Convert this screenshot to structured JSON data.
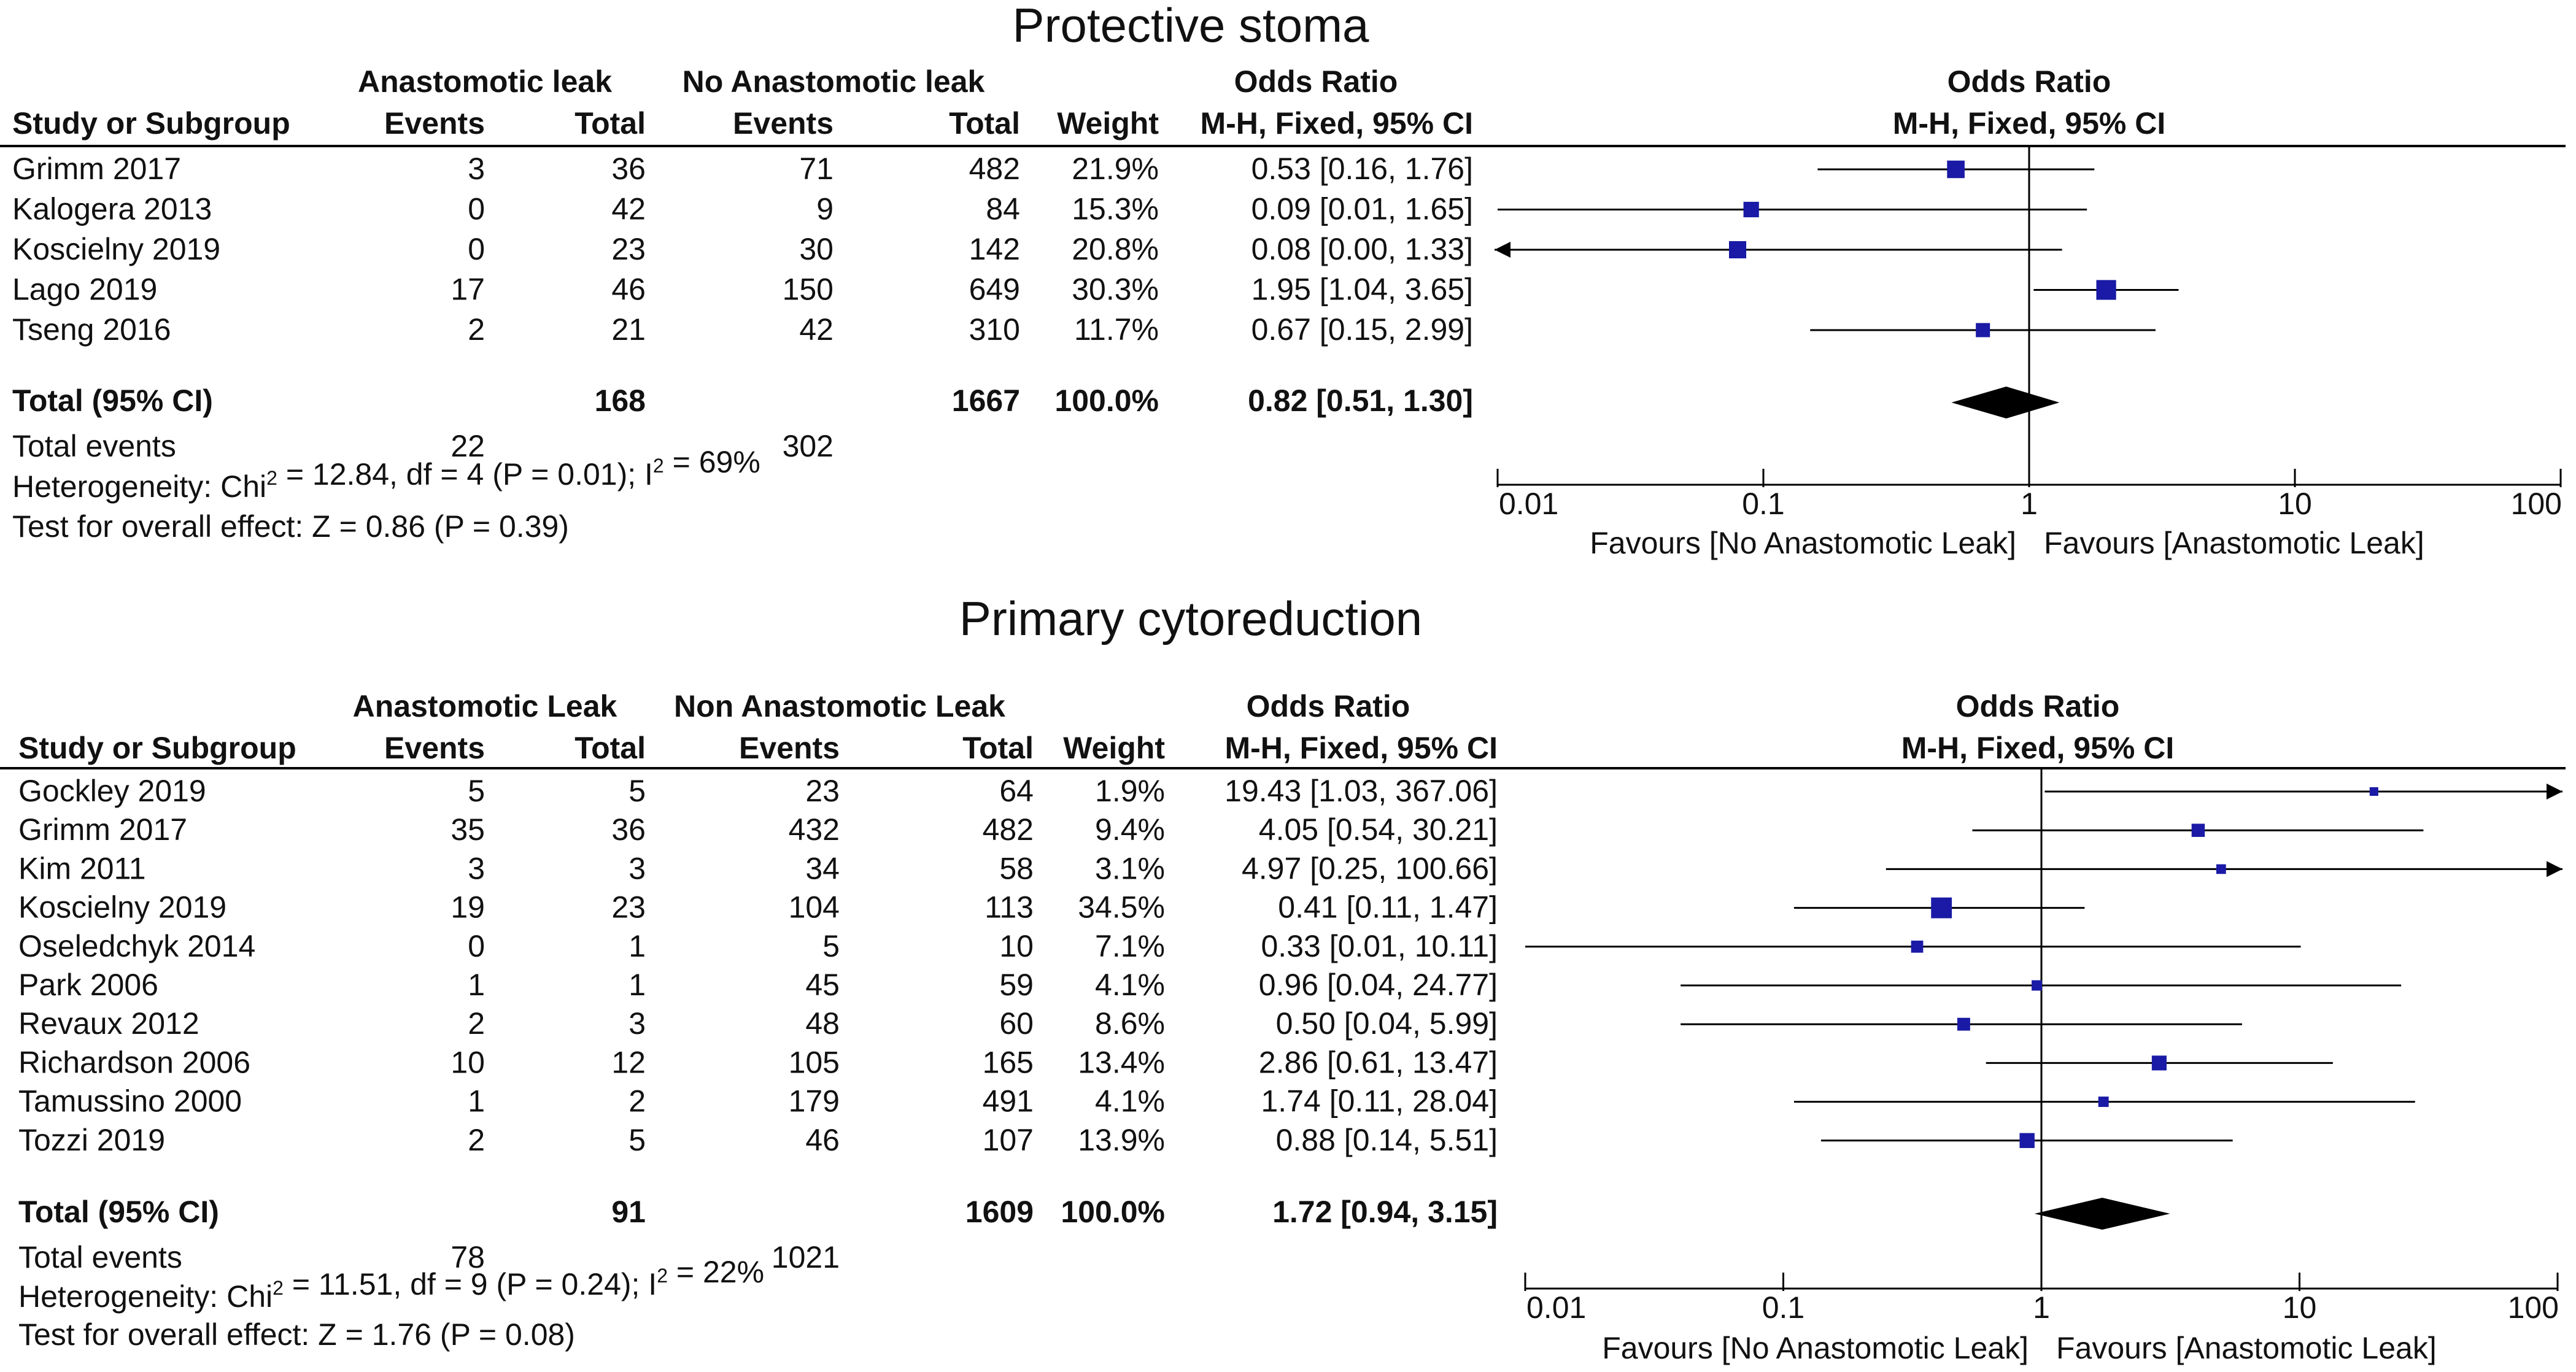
{
  "chart_data": [
    {
      "type": "table",
      "title": "Protective stoma",
      "group1_label": "Anastomotic leak",
      "group2_label": "No Anastomotic leak",
      "columns": {
        "study": "Study or Subgroup",
        "events": "Events",
        "total": "Total",
        "weight": "Weight",
        "or_header": "Odds Ratio",
        "or_method": "M-H, Fixed, 95% CI"
      },
      "plot_header": "Odds Ratio",
      "plot_method": "M-H, Fixed, 95% CI",
      "studies": [
        {
          "name": "Grimm 2017",
          "e1": "3",
          "t1": "36",
          "e2": "71",
          "t2": "482",
          "weight": "21.9%",
          "ci_text": "0.53 [0.16, 1.76]",
          "or": 0.53,
          "lo": 0.16,
          "hi": 1.76,
          "w": 21.9
        },
        {
          "name": "Kalogera 2013",
          "e1": "0",
          "t1": "42",
          "e2": "9",
          "t2": "84",
          "weight": "15.3%",
          "ci_text": "0.09 [0.01, 1.65]",
          "or": 0.09,
          "lo": 0.01,
          "hi": 1.65,
          "w": 15.3
        },
        {
          "name": "Koscielny 2019",
          "e1": "0",
          "t1": "23",
          "e2": "30",
          "t2": "142",
          "weight": "20.8%",
          "ci_text": "0.08 [0.00, 1.33]",
          "or": 0.08,
          "lo": 0.0,
          "hi": 1.33,
          "w": 20.8
        },
        {
          "name": "Lago 2019",
          "e1": "17",
          "t1": "46",
          "e2": "150",
          "t2": "649",
          "weight": "30.3%",
          "ci_text": "1.95 [1.04, 3.65]",
          "or": 1.95,
          "lo": 1.04,
          "hi": 3.65,
          "w": 30.3
        },
        {
          "name": "Tseng 2016",
          "e1": "2",
          "t1": "21",
          "e2": "42",
          "t2": "310",
          "weight": "11.7%",
          "ci_text": "0.67 [0.15, 2.99]",
          "or": 0.67,
          "lo": 0.15,
          "hi": 2.99,
          "w": 11.7
        }
      ],
      "total": {
        "label": "Total (95% CI)",
        "t1": "168",
        "t2": "1667",
        "weight": "100.0%",
        "ci_text": "0.82 [0.51, 1.30]",
        "or": 0.82,
        "lo": 0.51,
        "hi": 1.3
      },
      "total_events": {
        "label": "Total events",
        "e1": "22",
        "e2": "302"
      },
      "heterogeneity": {
        "prefix": "Heterogeneity: Chi",
        "sup1": "2",
        "middle": " = 12.84, df = 4 (P = 0.01); I",
        "sup2": "2",
        "suffix": " = 69%"
      },
      "overall_effect": "Test for overall effect: Z = 0.86 (P = 0.39)",
      "axis": {
        "ticks": [
          0.01,
          0.1,
          1,
          10,
          100
        ],
        "tick_labels": [
          "0.01",
          "0.1",
          "1",
          "10",
          "100"
        ],
        "range": [
          0.01,
          100
        ],
        "scale": "log"
      },
      "favours_left": "Favours [No Anastomotic Leak]",
      "favours_right": "Favours [Anastomotic Leak]"
    },
    {
      "type": "table",
      "title": "Primary cytoreduction",
      "group1_label": "Anastomotic Leak",
      "group2_label": "Non Anastomotic Leak",
      "columns": {
        "study": "Study or Subgroup",
        "events": "Events",
        "total": "Total",
        "weight": "Weight",
        "or_header": "Odds Ratio",
        "or_method": "M-H, Fixed, 95% CI"
      },
      "plot_header": "Odds Ratio",
      "plot_method": "M-H, Fixed, 95% CI",
      "studies": [
        {
          "name": "Gockley 2019",
          "e1": "5",
          "t1": "5",
          "e2": "23",
          "t2": "64",
          "weight": "1.9%",
          "ci_text": "19.43 [1.03, 367.06]",
          "or": 19.43,
          "lo": 1.03,
          "hi": 367.06,
          "w": 1.9
        },
        {
          "name": "Grimm 2017",
          "e1": "35",
          "t1": "36",
          "e2": "432",
          "t2": "482",
          "weight": "9.4%",
          "ci_text": "4.05 [0.54, 30.21]",
          "or": 4.05,
          "lo": 0.54,
          "hi": 30.21,
          "w": 9.4
        },
        {
          "name": "Kim 2011",
          "e1": "3",
          "t1": "3",
          "e2": "34",
          "t2": "58",
          "weight": "3.1%",
          "ci_text": "4.97 [0.25, 100.66]",
          "or": 4.97,
          "lo": 0.25,
          "hi": 100.66,
          "w": 3.1
        },
        {
          "name": "Koscielny 2019",
          "e1": "19",
          "t1": "23",
          "e2": "104",
          "t2": "113",
          "weight": "34.5%",
          "ci_text": "0.41 [0.11, 1.47]",
          "or": 0.41,
          "lo": 0.11,
          "hi": 1.47,
          "w": 34.5
        },
        {
          "name": "Oseledchyk 2014",
          "e1": "0",
          "t1": "1",
          "e2": "5",
          "t2": "10",
          "weight": "7.1%",
          "ci_text": "0.33 [0.01, 10.11]",
          "or": 0.33,
          "lo": 0.01,
          "hi": 10.11,
          "w": 7.1
        },
        {
          "name": "Park 2006",
          "e1": "1",
          "t1": "1",
          "e2": "45",
          "t2": "59",
          "weight": "4.1%",
          "ci_text": "0.96 [0.04, 24.77]",
          "or": 0.96,
          "lo": 0.04,
          "hi": 24.77,
          "w": 4.1
        },
        {
          "name": "Revaux 2012",
          "e1": "2",
          "t1": "3",
          "e2": "48",
          "t2": "60",
          "weight": "8.6%",
          "ci_text": "0.50 [0.04, 5.99]",
          "or": 0.5,
          "lo": 0.04,
          "hi": 5.99,
          "w": 8.6
        },
        {
          "name": "Richardson 2006",
          "e1": "10",
          "t1": "12",
          "e2": "105",
          "t2": "165",
          "weight": "13.4%",
          "ci_text": "2.86 [0.61, 13.47]",
          "or": 2.86,
          "lo": 0.61,
          "hi": 13.47,
          "w": 13.4
        },
        {
          "name": "Tamussino 2000",
          "e1": "1",
          "t1": "2",
          "e2": "179",
          "t2": "491",
          "weight": "4.1%",
          "ci_text": "1.74 [0.11, 28.04]",
          "or": 1.74,
          "lo": 0.11,
          "hi": 28.04,
          "w": 4.1
        },
        {
          "name": "Tozzi 2019",
          "e1": "2",
          "t1": "5",
          "e2": "46",
          "t2": "107",
          "weight": "13.9%",
          "ci_text": "0.88 [0.14, 5.51]",
          "or": 0.88,
          "lo": 0.14,
          "hi": 5.51,
          "w": 13.9
        }
      ],
      "total": {
        "label": "Total (95% CI)",
        "t1": "91",
        "t2": "1609",
        "weight": "100.0%",
        "ci_text": "1.72 [0.94, 3.15]",
        "or": 1.72,
        "lo": 0.94,
        "hi": 3.15
      },
      "total_events": {
        "label": "Total events",
        "e1": "78",
        "e2": "1021"
      },
      "heterogeneity": {
        "prefix": "Heterogeneity: Chi",
        "sup1": "2",
        "middle": " = 11.51, df = 9 (P = 0.24); I",
        "sup2": "2",
        "suffix": " = 22%"
      },
      "overall_effect": "Test for overall effect: Z = 1.76 (P = 0.08)",
      "axis": {
        "ticks": [
          0.01,
          0.1,
          1,
          10,
          100
        ],
        "tick_labels": [
          "0.01",
          "0.1",
          "1",
          "10",
          "100"
        ],
        "range": [
          0.01,
          100
        ],
        "scale": "log"
      },
      "favours_left": "Favours [No Anastomotic Leak]",
      "favours_right": "Favours [Anastomotic Leak]"
    }
  ],
  "colors": {
    "marker": "#1a1aa6",
    "line": "#000000",
    "text": "#111111"
  }
}
